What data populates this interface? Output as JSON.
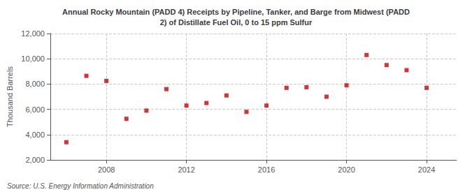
{
  "chart_data": {
    "type": "scatter",
    "title": "Annual Rocky Mountain (PADD 4) Receipts by Pipeline, Tanker, and Barge from Midwest (PADD\n2) of Distillate Fuel Oil, 0 to 15 ppm Sulfur",
    "ylabel": "Thousand Barrels",
    "source": "Source: U.S. Energy Information Administration",
    "x": [
      2006,
      2007,
      2008,
      2009,
      2010,
      2011,
      2012,
      2013,
      2014,
      2015,
      2016,
      2017,
      2018,
      2019,
      2020,
      2021,
      2022,
      2023,
      2024
    ],
    "values": [
      3400,
      8650,
      8250,
      5250,
      5900,
      7600,
      6300,
      6500,
      7100,
      5800,
      6300,
      7700,
      7750,
      7000,
      7900,
      10300,
      9500,
      9100,
      7700
    ],
    "color": "#cc0000",
    "marker": "square",
    "xlim": [
      2005.2,
      2025.5
    ],
    "xticks": [
      2008,
      2012,
      2016,
      2020,
      2024
    ],
    "ylim": [
      2000,
      12000
    ],
    "yticks": [
      {
        "value": 2000,
        "label": "2,000"
      },
      {
        "value": 4000,
        "label": "4,000"
      },
      {
        "value": 6000,
        "label": "6,000"
      },
      {
        "value": 8000,
        "label": "8,000"
      },
      {
        "value": 10000,
        "label": "10,000"
      },
      {
        "value": 12000,
        "label": "12,000"
      }
    ],
    "grid": true
  }
}
